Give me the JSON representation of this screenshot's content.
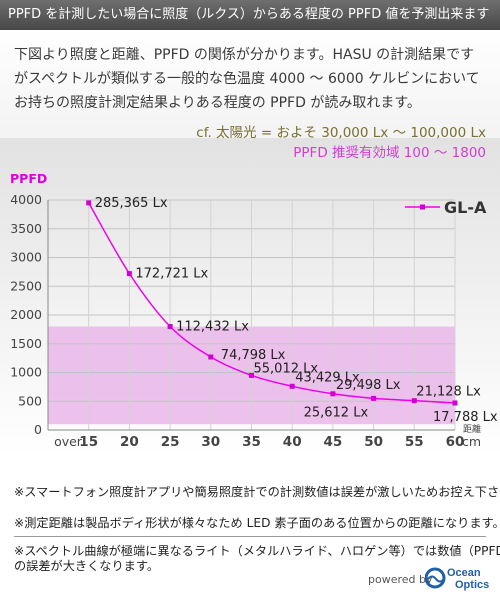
{
  "header": {
    "title": "PPFD を計測したい場合に照度（ルクス）からある程度の PPFD 値を予測出来ます"
  },
  "intro": {
    "lines": [
      "下図より照度と距離、PPFD の関係が分かります。HASU の計測結果です",
      "がスペクトルが類似する一般的な色温度 4000 ～ 6000 ケルビンにおいて",
      "お持ちの照度計測定結果よりある程度の PPFD が読み取れます。"
    ],
    "note_sun": "cf. 太陽光 = およそ 30,000 Lx ～ 100,000 Lx",
    "note_ppfd": "PPFD 推奨有効域 100 ～ 1800"
  },
  "colors": {
    "line": "#ee00ee",
    "marker": "#d000d0",
    "band": "#e9b6e9",
    "note_sun": "#7a7030",
    "note_ppfd": "#d040d0",
    "ylabel": "#e000e0",
    "axis_text": "#444444"
  },
  "chart_data": {
    "type": "line",
    "title": "",
    "ylabel": "PPFD",
    "xlabel": "距離 cm",
    "x_categories": [
      "over",
      "15",
      "20",
      "25",
      "30",
      "35",
      "40",
      "45",
      "50",
      "55",
      "60"
    ],
    "yticks": [
      0,
      500,
      1000,
      1500,
      2000,
      2500,
      3000,
      3500,
      4000
    ],
    "ylim": [
      0,
      4000
    ],
    "grid": true,
    "legend": {
      "position": "top-right",
      "entries": [
        "GL-A"
      ]
    },
    "highlight_band": {
      "from": 100,
      "to": 1800
    },
    "series": [
      {
        "name": "GL-A",
        "x": [
          15,
          20,
          25,
          30,
          35,
          40,
          45,
          50,
          55,
          60
        ],
        "y": [
          3950,
          2720,
          1800,
          1270,
          950,
          760,
          630,
          550,
          510,
          470
        ],
        "labels": [
          "285,365 Lx",
          "172,721 Lx",
          "112,432 Lx",
          "74,798 Lx",
          "55,012 Lx",
          "43,429 Lx",
          "29,498 Lx",
          "25,612 Lx",
          "21,128 Lx",
          "17,788 Lx"
        ]
      }
    ]
  },
  "footnotes": [
    "※スマートフォン照度計アプリや簡易照度計での計測数値は誤差が激しいためお控え下さい。",
    "※測定距離は製品ボディ形状が様々なため LED 素子面のある位置からの距離になります。",
    "※スペクトル曲線が極端に異なるライト（メタルハライド、ハロゲン等）では数値（PPFD）",
    "の誤差が大きくなります。"
  ],
  "footer": {
    "powered": "powered by",
    "brand_line1": "Ocean",
    "brand_line2": "Optics"
  }
}
